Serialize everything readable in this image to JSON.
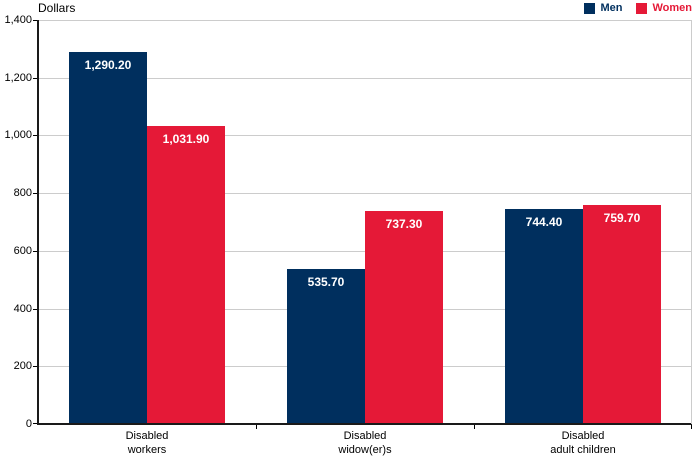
{
  "chart_data": {
    "type": "bar",
    "title": "",
    "ylabel": "Dollars",
    "xlabel": "",
    "ylim": [
      0,
      1400
    ],
    "yticks": [
      0,
      200,
      400,
      600,
      800,
      1000,
      1200,
      1400
    ],
    "ytick_labels": [
      "0",
      "200",
      "400",
      "600",
      "800",
      "1,000",
      "1,200",
      "1,400"
    ],
    "grid": true,
    "legend_position": "top-right",
    "categories": [
      "Disabled workers",
      "Disabled widow(er)s",
      "Disabled adult children"
    ],
    "category_lines": [
      [
        "Disabled",
        "workers"
      ],
      [
        "Disabled",
        "widow(er)s"
      ],
      [
        "Disabled",
        "adult children"
      ]
    ],
    "series": [
      {
        "name": "Men",
        "color": "#002f5e",
        "values": [
          1290.2,
          535.7,
          744.4
        ],
        "value_labels": [
          "1,290.20",
          "535.70",
          "744.40"
        ]
      },
      {
        "name": "Women",
        "color": "#e51937",
        "values": [
          1031.9,
          737.3,
          759.7
        ],
        "value_labels": [
          "1,031.90",
          "737.30",
          "759.70"
        ]
      }
    ]
  }
}
